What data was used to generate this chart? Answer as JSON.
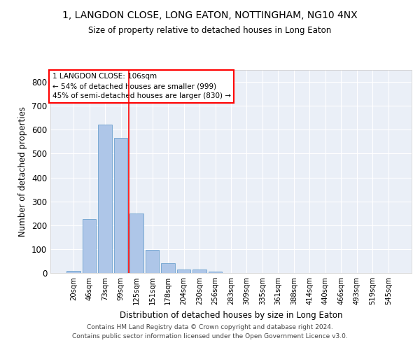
{
  "title": "1, LANGDON CLOSE, LONG EATON, NOTTINGHAM, NG10 4NX",
  "subtitle": "Size of property relative to detached houses in Long Eaton",
  "xlabel": "Distribution of detached houses by size in Long Eaton",
  "ylabel": "Number of detached properties",
  "bar_color": "#aec6e8",
  "bar_edge_color": "#5a96c8",
  "background_color": "#eaeff7",
  "grid_color": "#ffffff",
  "categories": [
    "20sqm",
    "46sqm",
    "73sqm",
    "99sqm",
    "125sqm",
    "151sqm",
    "178sqm",
    "204sqm",
    "230sqm",
    "256sqm",
    "283sqm",
    "309sqm",
    "335sqm",
    "361sqm",
    "388sqm",
    "414sqm",
    "440sqm",
    "466sqm",
    "493sqm",
    "519sqm",
    "545sqm"
  ],
  "values": [
    10,
    225,
    620,
    565,
    250,
    96,
    41,
    16,
    16,
    5,
    0,
    0,
    0,
    0,
    0,
    0,
    0,
    0,
    0,
    0,
    0
  ],
  "ylim": [
    0,
    850
  ],
  "yticks": [
    0,
    100,
    200,
    300,
    400,
    500,
    600,
    700,
    800
  ],
  "property_line_x": 3.5,
  "property_label": "1 LANGDON CLOSE: 106sqm",
  "annotation_line1": "← 54% of detached houses are smaller (999)",
  "annotation_line2": "45% of semi-detached houses are larger (830) →",
  "footer_line1": "Contains HM Land Registry data © Crown copyright and database right 2024.",
  "footer_line2": "Contains public sector information licensed under the Open Government Licence v3.0."
}
